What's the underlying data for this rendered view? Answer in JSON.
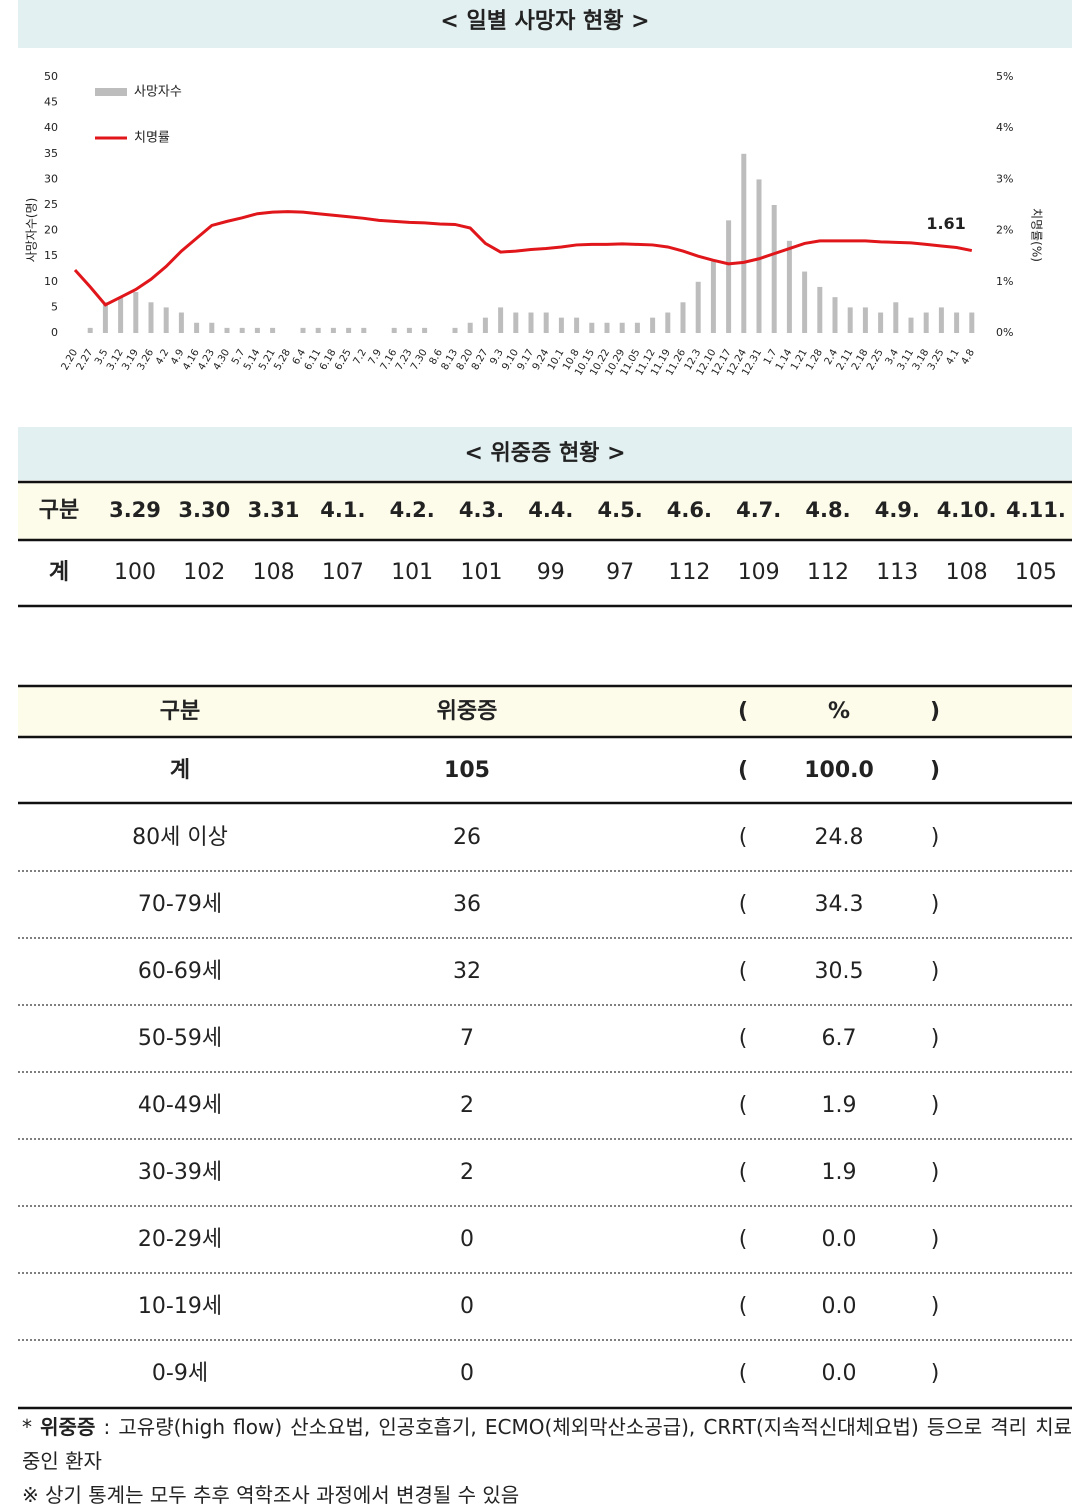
{
  "chart_section": {
    "title": "< 일별 사망자 현황 >"
  },
  "chart_data": {
    "type": "bar",
    "y_label": "사망자수(명)",
    "y2_label": "치명률(%)",
    "categories": [
      "2.20",
      "2.27",
      "3.5",
      "3.12",
      "3.19",
      "3.26",
      "4.2",
      "4.9",
      "4.16",
      "4.23",
      "4.30",
      "5.7",
      "5.14",
      "5.21",
      "5.28",
      "6.4",
      "6.11",
      "6.18",
      "6.25",
      "7.2",
      "7.9",
      "7.16",
      "7.23",
      "7.30",
      "8.6",
      "8.13",
      "8.20",
      "8.27",
      "9.3",
      "9.10",
      "9.17",
      "9.24",
      "10.1",
      "10.8",
      "10.15",
      "10.22",
      "10.29",
      "11.05",
      "11.12",
      "11.19",
      "11.26",
      "12.3",
      "12.10",
      "12.17",
      "12.24",
      "12.31",
      "1.7",
      "1.14",
      "1.21",
      "1.28",
      "2.4",
      "2.11",
      "2.18",
      "2.25",
      "3.4",
      "3.11",
      "3.18",
      "3.25",
      "4.1",
      "4.8"
    ],
    "series": [
      {
        "name": "사망자수",
        "color": "#bdbdbd",
        "values": [
          0,
          1,
          6,
          7,
          8,
          6,
          5,
          4,
          2,
          2,
          1,
          1,
          1,
          1,
          0,
          1,
          1,
          1,
          1,
          1,
          0,
          1,
          1,
          1,
          0,
          1,
          2,
          3,
          5,
          4,
          4,
          4,
          3,
          3,
          2,
          2,
          2,
          2,
          3,
          4,
          6,
          10,
          14,
          22,
          35,
          30,
          25,
          18,
          12,
          9,
          7,
          5,
          5,
          4,
          6,
          3,
          4,
          5,
          4,
          4
        ]
      },
      {
        "name": "치명률",
        "color": "#e0161b",
        "type": "line",
        "axis": "y2",
        "values": [
          1.23,
          0.9,
          0.55,
          0.7,
          0.85,
          1.05,
          1.3,
          1.6,
          1.85,
          2.1,
          2.18,
          2.25,
          2.33,
          2.36,
          2.37,
          2.36,
          2.33,
          2.3,
          2.27,
          2.24,
          2.2,
          2.18,
          2.16,
          2.15,
          2.13,
          2.12,
          2.05,
          1.75,
          1.58,
          1.6,
          1.63,
          1.65,
          1.68,
          1.72,
          1.73,
          1.73,
          1.74,
          1.73,
          1.72,
          1.68,
          1.6,
          1.5,
          1.42,
          1.35,
          1.38,
          1.45,
          1.55,
          1.65,
          1.75,
          1.8,
          1.8,
          1.8,
          1.8,
          1.78,
          1.77,
          1.76,
          1.73,
          1.7,
          1.67,
          1.61
        ],
        "value_labels": [
          null,
          null,
          null,
          null,
          null,
          null,
          null,
          null,
          null,
          null,
          null,
          null,
          null,
          null,
          null,
          null,
          null,
          null,
          null,
          null,
          null,
          null,
          null,
          null,
          null,
          null,
          null,
          null,
          null,
          null,
          null,
          null,
          null,
          null,
          null,
          null,
          null,
          null,
          null,
          null,
          null,
          null,
          null,
          null,
          null,
          null,
          null,
          null,
          null,
          null,
          null,
          null,
          null,
          null,
          null,
          null,
          null,
          null,
          null,
          "1.61"
        ]
      }
    ],
    "ylim": [
      0,
      50
    ],
    "yticks": [
      0,
      5,
      10,
      15,
      20,
      25,
      30,
      35,
      40,
      45,
      50
    ],
    "y2lim": [
      0,
      5
    ],
    "y2ticks": [
      {
        "value": 0,
        "label": "0%"
      },
      {
        "value": 1,
        "label": "1%"
      },
      {
        "value": 2,
        "label": "2%"
      },
      {
        "value": 3,
        "label": "3%"
      },
      {
        "value": 4,
        "label": "4%"
      },
      {
        "value": 5,
        "label": "5%"
      }
    ],
    "legend": "top-left"
  },
  "critical_daily": {
    "title": "< 위중증 현황 >",
    "header": "구분",
    "dates": [
      "3.29",
      "3.30",
      "3.31",
      "4.1.",
      "4.2.",
      "4.3.",
      "4.4.",
      "4.5.",
      "4.6.",
      "4.7.",
      "4.8.",
      "4.9.",
      "4.10.",
      "4.11."
    ],
    "row_label": "계",
    "values": [
      100,
      102,
      108,
      107,
      101,
      101,
      99,
      97,
      112,
      109,
      112,
      113,
      108,
      105
    ]
  },
  "critical_by_age": {
    "headers": [
      "구분",
      "위중증",
      "%"
    ],
    "paren_open": "(",
    "paren_close": ")",
    "total": [
      "계",
      "105",
      "100.0"
    ],
    "rows": [
      [
        "80세 이상",
        "26",
        "24.8"
      ],
      [
        "70-79세",
        "36",
        "34.3"
      ],
      [
        "60-69세",
        "32",
        "30.5"
      ],
      [
        "50-59세",
        "7",
        "6.7"
      ],
      [
        "40-49세",
        "2",
        "1.9"
      ],
      [
        "30-39세",
        "2",
        "1.9"
      ],
      [
        "20-29세",
        "0",
        "0.0"
      ],
      [
        "10-19세",
        "0",
        "0.0"
      ],
      [
        "0-9세",
        "0",
        "0.0"
      ]
    ]
  },
  "footnotes": {
    "mark": "*",
    "term": "위중증",
    "definition": ": 고유량(high flow) 산소요법, 인공호흡기, ECMO(체외막산소공급), CRRT(지속적신대체요법) 등으로 격리 치료 중인 환자",
    "note": "※ 상기 통계는 모두 추후 역학조사 과정에서 변경될 수 있음"
  }
}
